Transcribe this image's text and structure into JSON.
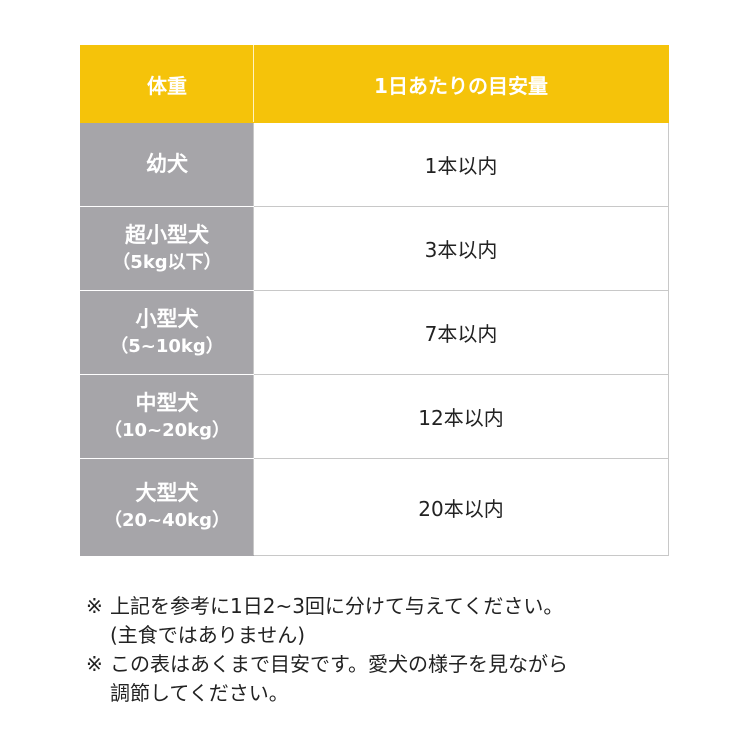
{
  "table": {
    "headers": [
      "体重",
      "1日あたりの目安量"
    ],
    "rows": [
      {
        "weight": "幼犬",
        "weight_sub": "",
        "amount": "1本以内"
      },
      {
        "weight": "超小型犬",
        "weight_sub": "（5kg以下）",
        "amount": "3本以内"
      },
      {
        "weight": "小型犬",
        "weight_sub": "（5~10kg）",
        "amount": "7本以内"
      },
      {
        "weight": "中型犬",
        "weight_sub": "（10~20kg）",
        "amount": "12本以内"
      },
      {
        "weight": "大型犬",
        "weight_sub": "（20~40kg）",
        "amount": "20本以内"
      }
    ]
  },
  "notes": [
    {
      "mark": "※",
      "line1": "上記を参考に1日2~3回に分けて与えてください。",
      "line2": "(主食ではありません)"
    },
    {
      "mark": "※",
      "line1": "この表はあくまで目安です。愛犬の様子を見ながら",
      "line2": "調節してください。"
    }
  ],
  "colors": {
    "header": "#f5c30a",
    "label_column": "#a6a5a9"
  }
}
